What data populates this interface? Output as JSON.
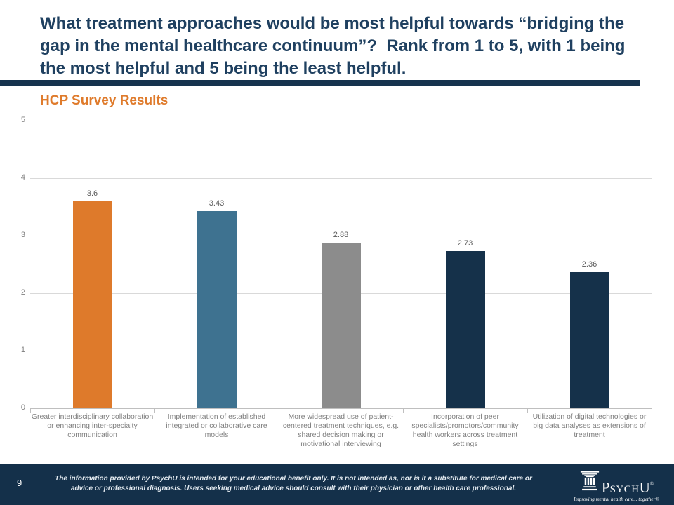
{
  "slide": {
    "title": "What treatment approaches would be most helpful towards “bridging the gap in the mental healthcare continuum”?  Rank from 1 to 5, with 1 being the most helpful and 5 being the least helpful.",
    "subtitle": "HCP Survey Results",
    "page_number": "9",
    "footer_disclaimer": "The information provided by PsychU is intended for your educational benefit only. It is not intended as, nor is it a substitute for medical care or advice or professional diagnosis. Users seeking medical advice should consult with their physician or other health care professional.",
    "logo": {
      "icon": "column-icon",
      "wordmark_p": "P",
      "wordmark_sych": "SYCH",
      "wordmark_u": "U",
      "registered": "®",
      "tagline": "Improving mental health care... together®"
    }
  },
  "chart_data": {
    "type": "bar",
    "title": "HCP Survey Results",
    "categories": [
      "Greater interdisciplinary collaboration or enhancing inter-specialty communication",
      "Implementation of established integrated or collaborative care models",
      "More widespread use of patient-centered treatment techniques, e.g. shared decision making or motivational interviewing",
      "Incorporation of peer specialists/promotors/community health workers across treatment settings",
      "Utilization of digital technologies or big data analyses as extensions of treatment"
    ],
    "values": [
      3.6,
      3.43,
      2.88,
      2.73,
      2.36
    ],
    "value_labels": [
      "3.6",
      "3.43",
      "2.88",
      "2.73",
      "2.36"
    ],
    "bar_colors": [
      "#DE7A2B",
      "#3E7290",
      "#8C8C8C",
      "#15314A",
      "#15314A"
    ],
    "xlabel": "",
    "ylabel": "",
    "ylim": [
      0,
      5
    ],
    "yticks": [
      0,
      1,
      2,
      3,
      4,
      5
    ],
    "grid": true,
    "legend": false
  },
  "colors": {
    "title_navy": "#1F4060",
    "divider_navy": "#16334E",
    "accent_orange": "#DF7B2C",
    "footer_navy": "#14304A",
    "grid_gray": "#D9D9D9",
    "axis_gray": "#BFBFBF",
    "label_gray": "#7F7F7F",
    "value_gray": "#595959",
    "footer_text": "#E4EBF1"
  }
}
